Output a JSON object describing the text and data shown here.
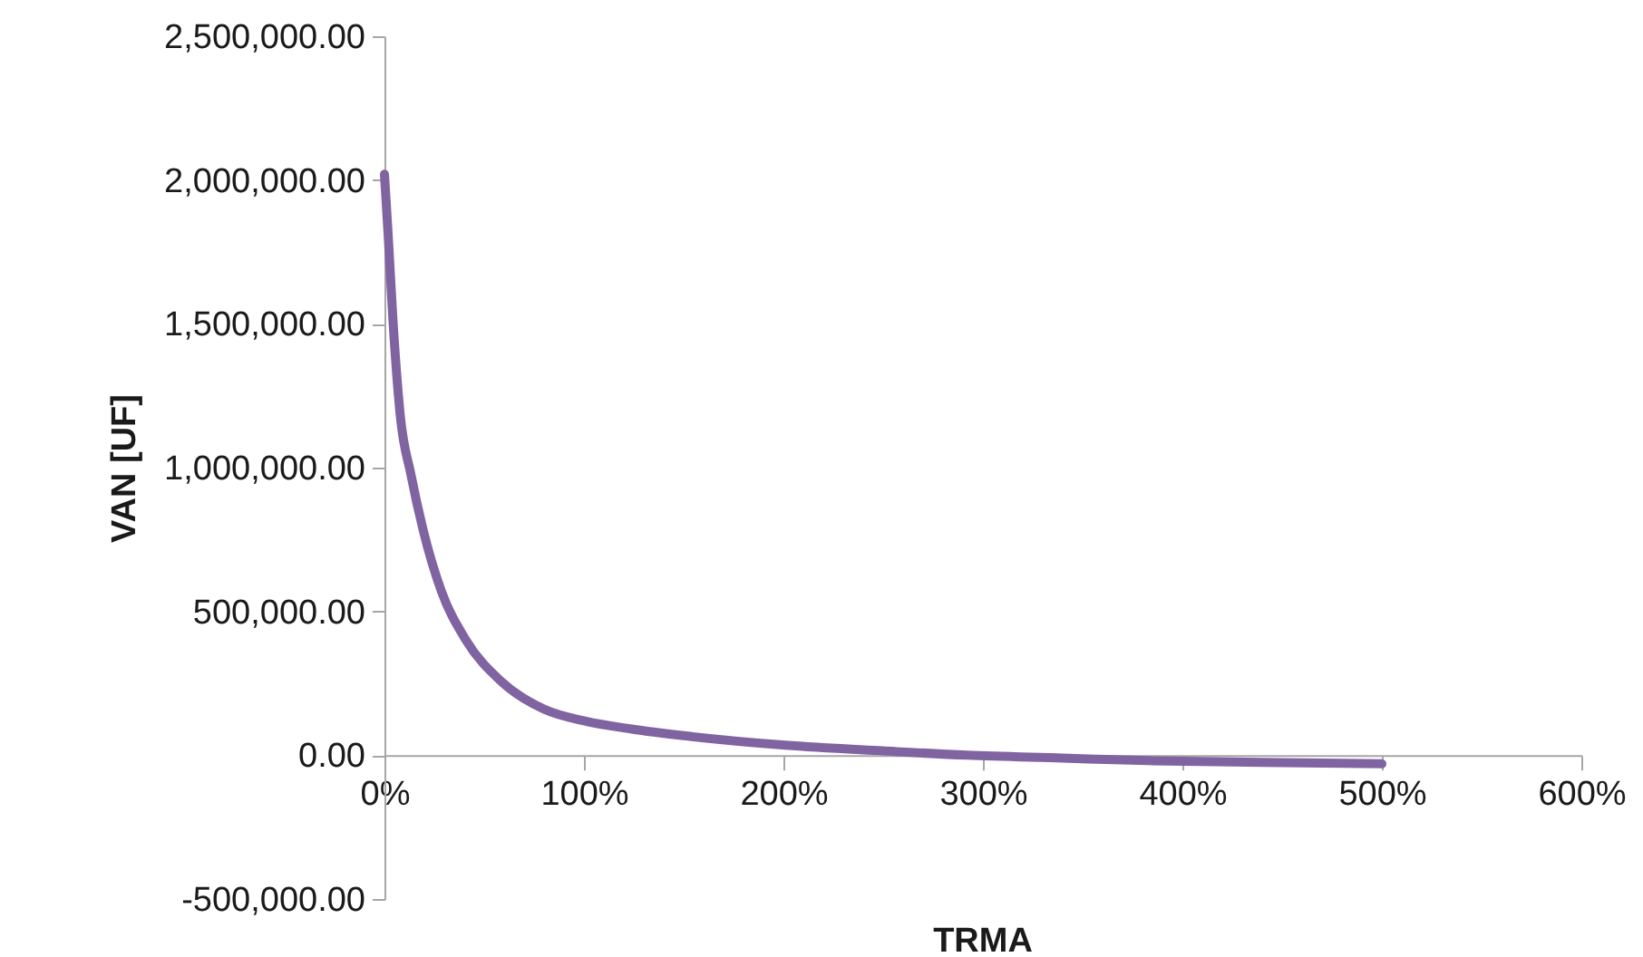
{
  "chart_data": {
    "type": "line",
    "xlabel": "TRMA",
    "ylabel": "VAN [UF]",
    "x": [
      0,
      1.8,
      4.3,
      7.9,
      13.3,
      19.4,
      28.5,
      40.6,
      58.8,
      80,
      101,
      124,
      150,
      201,
      250,
      292,
      340,
      383,
      440,
      500
    ],
    "series": [
      {
        "color": "#8064a2",
        "values": [
          2020000,
          1816000,
          1508000,
          1183000,
          975000,
          783000,
          571000,
          403000,
          255000,
          160000,
          118000,
          91000,
          68000,
          35000,
          15000,
          0,
          -10000,
          -19000,
          -25000,
          -30000
        ]
      }
    ],
    "xlim": [
      0,
      600
    ],
    "xticks": [
      {
        "value": 0,
        "label": "0%"
      },
      {
        "value": 100,
        "label": "100%"
      },
      {
        "value": 200,
        "label": "200%"
      },
      {
        "value": 300,
        "label": "300%"
      },
      {
        "value": 400,
        "label": "400%"
      },
      {
        "value": 500,
        "label": "500%"
      },
      {
        "value": 600,
        "label": "600%"
      }
    ],
    "ylim": [
      -500000,
      2500000
    ],
    "yticks": [
      {
        "value": -500000,
        "label": "-500,000.00"
      },
      {
        "value": 0,
        "label": "0.00"
      },
      {
        "value": 500000,
        "label": "500,000.00"
      },
      {
        "value": 1000000,
        "label": "1,000,000.00"
      },
      {
        "value": 1500000,
        "label": "1,500,000.00"
      },
      {
        "value": 2000000,
        "label": "2,000,000.00"
      },
      {
        "value": 2500000,
        "label": "2,500,000.00"
      }
    ],
    "grid": false,
    "marker": "none",
    "line_style": "solid"
  }
}
